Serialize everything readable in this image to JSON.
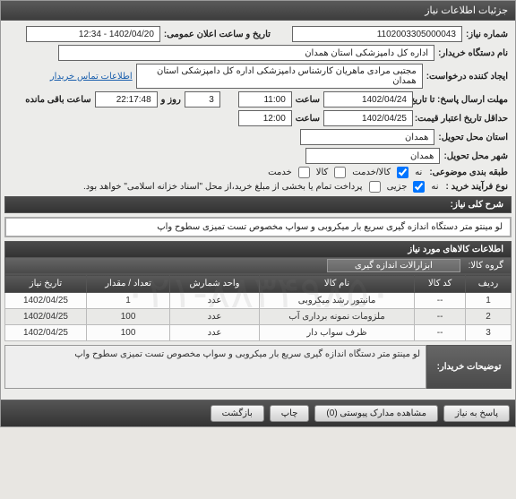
{
  "panel": {
    "title": "جزئیات اطلاعات نیاز"
  },
  "form": {
    "need_no_label": "شماره نیاز:",
    "need_no": "1102003305000043",
    "announce_label": "تاریخ و ساعت اعلان عمومی:",
    "announce_value": "1402/04/20 - 12:34",
    "buyer_org_label": "نام دستگاه خریدار:",
    "buyer_org": "اداره کل دامپزشکی استان همدان",
    "requester_label": "ایجاد کننده درخواست:",
    "requester": "مجتبی مرادی ماهریان کارشناس دامپزشکی اداره کل دامپزشکی استان همدان",
    "contact_link": "اطلاعات تماس خریدار",
    "deadline_label": "مهلت ارسال پاسخ: تا تاریخ:",
    "deadline_date": "1402/04/24",
    "time_label": "ساعت",
    "deadline_time": "11:00",
    "days_label": "روز و",
    "days_value": "3",
    "countdown": "22:17:48",
    "remain_label": "ساعت باقی مانده",
    "validity_label": "حداقل تاریخ اعتبار قیمت: تا تاریخ:",
    "validity_date": "1402/04/25",
    "validity_time": "12:00",
    "province_label": "استان محل تحویل:",
    "province": "همدان",
    "city_label": "شهر محل تحویل:",
    "city": "همدان",
    "category_label": "طبقه بندی موضوعی:",
    "cat_no": "نه",
    "cat_service": "کالا/خدمت",
    "cat_service_chk": true,
    "cat_goods": "کالا",
    "cat_goods_chk": false,
    "cat_srv": "خدمت",
    "cat_srv_chk": false,
    "buy_type_label": "نوع فرآیند خرید :",
    "buy_type_no": "نه",
    "buy_type_partial": "جزیی",
    "buy_type_partial_chk": true,
    "buy_type_note": "پرداخت تمام یا بخشی از مبلغ خرید،از محل \"اسناد خزانه اسلامی\" خواهد بود."
  },
  "desc": {
    "header": "شرح کلی نیاز:",
    "text": "لو مینتو متر دستگاه اندازه گیری سریع بار میکروبی و سواپ مخصوص تست تمیزی سطوح واپ"
  },
  "items": {
    "header": "اطلاعات کالاهای مورد نیاز",
    "group_label": "گروه کالا:",
    "group_value": "ابزارالات اندازه گیری",
    "cols": [
      "ردیف",
      "کد کالا",
      "نام کالا",
      "واحد شمارش",
      "تعداد / مقدار",
      "تاریخ نیاز"
    ],
    "rows": [
      [
        "1",
        "--",
        "مانیتور رشد میکروبی",
        "عدد",
        "1",
        "1402/04/25"
      ],
      [
        "2",
        "--",
        "ملزومات نمونه برداری آب",
        "عدد",
        "100",
        "1402/04/25"
      ],
      [
        "3",
        "--",
        "ظرف سواب دار",
        "عدد",
        "100",
        "1402/04/25"
      ]
    ]
  },
  "notes": {
    "label": "توضیحات خریدار:",
    "text": "لو مینتو متر دستگاه اندازه گیری سریع بار میکروبی و سواپ مخصوص تست تمیزی سطوح واپ"
  },
  "buttons": {
    "respond": "پاسخ به نیاز",
    "attachments": "مشاهده مدارک پیوستی  (0)",
    "print": "چاپ",
    "back": "بازگشت"
  },
  "watermark": "۰۲۱-۸۸۳۴۹۸۵۰"
}
